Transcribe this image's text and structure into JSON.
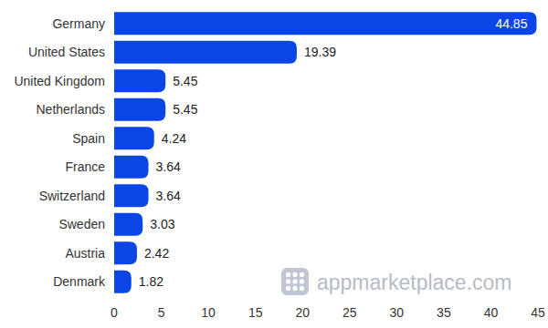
{
  "chart_data": {
    "type": "bar",
    "orientation": "horizontal",
    "categories": [
      "Germany",
      "United States",
      "United Kingdom",
      "Netherlands",
      "Spain",
      "France",
      "Switzerland",
      "Sweden",
      "Austria",
      "Denmark"
    ],
    "values": [
      44.85,
      19.39,
      5.45,
      5.45,
      4.24,
      3.64,
      3.64,
      3.03,
      2.42,
      1.82
    ],
    "color": "#0c45e6",
    "xlim": [
      0,
      45
    ],
    "xticks": [
      0,
      5,
      10,
      15,
      20,
      25,
      30,
      35,
      40,
      45
    ],
    "grid": false,
    "data_labels": true,
    "annotations": [
      "appmarketplace.com"
    ]
  }
}
